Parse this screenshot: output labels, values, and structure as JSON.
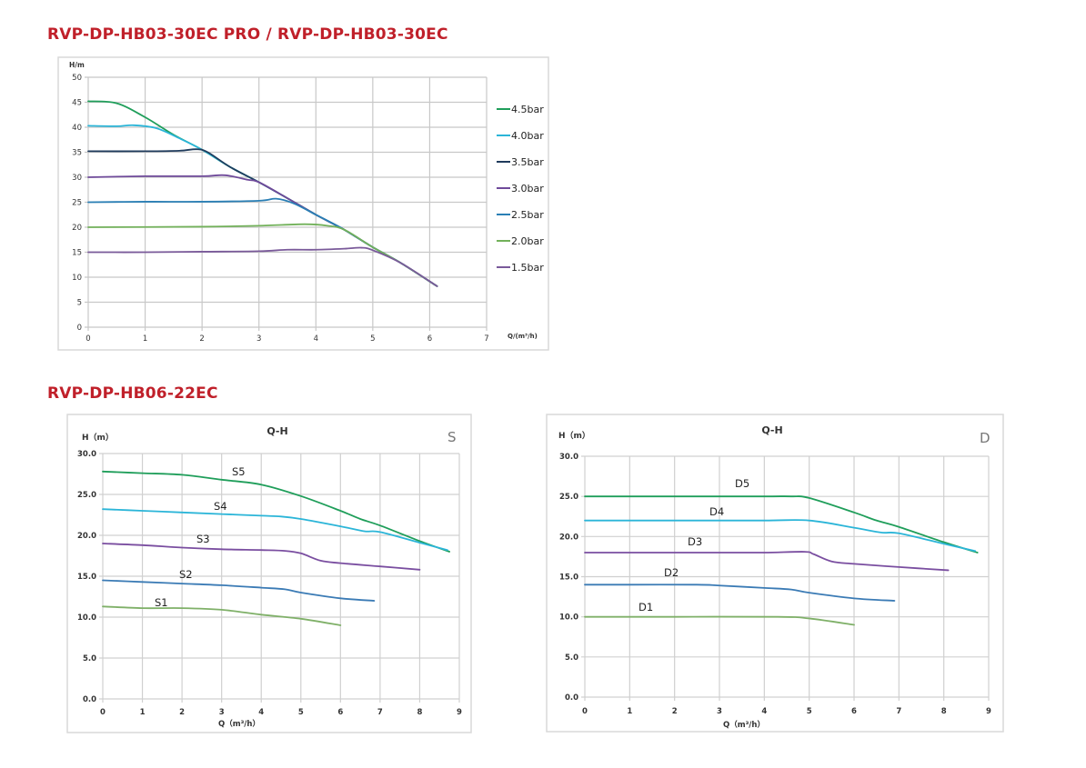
{
  "titles": {
    "section1": "RVP-DP-HB03-30EC PRO / RVP-DP-HB03-30EC",
    "section2": "RVP-DP-HB06-22EC"
  },
  "chart_data": [
    {
      "type": "line",
      "title": "",
      "xlabel": "Q/(m³/h)",
      "ylabel": "H/m",
      "xlim": [
        0,
        7
      ],
      "ylim": [
        0,
        50
      ],
      "xticks": [
        "0",
        "1",
        "2",
        "3",
        "4",
        "5",
        "6",
        "7"
      ],
      "yticks": [
        "0",
        "5",
        "10",
        "15",
        "20",
        "25",
        "30",
        "35",
        "40",
        "45",
        "50"
      ],
      "grid": true,
      "legend": "right",
      "series": [
        {
          "name": "4.5bar",
          "color": "#1f9e5a",
          "points": [
            [
              0,
              45.2
            ],
            [
              0.5,
              44.8
            ],
            [
              1,
              42
            ],
            [
              1.5,
              38.5
            ],
            [
              2,
              35.5
            ],
            [
              2.5,
              32
            ],
            [
              3,
              29
            ],
            [
              3.5,
              25.8
            ],
            [
              4,
              22.5
            ],
            [
              4.5,
              19.5
            ],
            [
              5,
              16
            ],
            [
              5.5,
              12.8
            ],
            [
              6.13,
              8.2
            ]
          ]
        },
        {
          "name": "4.0bar",
          "color": "#2bb5d8",
          "points": [
            [
              0,
              40.3
            ],
            [
              0.5,
              40.2
            ],
            [
              0.8,
              40.4
            ],
            [
              1.2,
              39.8
            ],
            [
              1.6,
              37.8
            ],
            [
              2,
              35.5
            ],
            [
              2.5,
              32
            ],
            [
              3,
              29
            ],
            [
              3.5,
              25.8
            ],
            [
              4,
              22.5
            ],
            [
              4.5,
              19.5
            ],
            [
              5,
              16
            ],
            [
              5.5,
              12.8
            ],
            [
              6.13,
              8.2
            ]
          ]
        },
        {
          "name": "3.5bar",
          "color": "#1f3b5c",
          "points": [
            [
              0,
              35.2
            ],
            [
              1,
              35.2
            ],
            [
              1.6,
              35.3
            ],
            [
              1.9,
              35.6
            ],
            [
              2.1,
              35
            ],
            [
              2.5,
              32
            ],
            [
              3,
              29
            ],
            [
              3.5,
              25.8
            ],
            [
              4,
              22.5
            ],
            [
              4.5,
              19.5
            ],
            [
              5,
              16
            ],
            [
              5.5,
              12.8
            ],
            [
              6.13,
              8.2
            ]
          ]
        },
        {
          "name": "3.0bar",
          "color": "#6f4a9a",
          "points": [
            [
              0,
              30
            ],
            [
              1,
              30.2
            ],
            [
              2,
              30.2
            ],
            [
              2.4,
              30.4
            ],
            [
              2.8,
              29.5
            ],
            [
              3,
              29
            ],
            [
              3.5,
              25.8
            ],
            [
              4,
              22.5
            ],
            [
              4.5,
              19.5
            ],
            [
              5,
              16
            ],
            [
              5.5,
              12.8
            ],
            [
              6.13,
              8.2
            ]
          ]
        },
        {
          "name": "2.5bar",
          "color": "#2a7fb5",
          "points": [
            [
              0,
              25
            ],
            [
              1,
              25.1
            ],
            [
              2,
              25.1
            ],
            [
              3,
              25.3
            ],
            [
              3.3,
              25.7
            ],
            [
              3.6,
              24.8
            ],
            [
              4,
              22.5
            ],
            [
              4.5,
              19.5
            ],
            [
              5,
              16
            ],
            [
              5.5,
              12.8
            ],
            [
              6.13,
              8.2
            ]
          ]
        },
        {
          "name": "2.0bar",
          "color": "#72b15a",
          "points": [
            [
              0,
              20
            ],
            [
              2,
              20.1
            ],
            [
              3,
              20.3
            ],
            [
              3.8,
              20.6
            ],
            [
              4.2,
              20.3
            ],
            [
              4.5,
              19.5
            ],
            [
              5,
              16
            ],
            [
              5.5,
              12.8
            ],
            [
              6.13,
              8.2
            ]
          ]
        },
        {
          "name": "1.5bar",
          "color": "#7a5a9a",
          "points": [
            [
              0,
              15
            ],
            [
              1,
              15
            ],
            [
              2,
              15.1
            ],
            [
              3,
              15.2
            ],
            [
              3.5,
              15.5
            ],
            [
              4,
              15.5
            ],
            [
              4.5,
              15.7
            ],
            [
              4.8,
              15.9
            ],
            [
              5,
              15.4
            ],
            [
              5.5,
              12.8
            ],
            [
              6.13,
              8.2
            ]
          ]
        }
      ]
    },
    {
      "type": "line",
      "title": "Q-H",
      "corner_label": "S",
      "xlabel": "Q（m³/h）",
      "ylabel": "H（m）",
      "xlim": [
        0,
        9
      ],
      "ylim": [
        0,
        30
      ],
      "xticks": [
        "0",
        "1",
        "2",
        "3",
        "4",
        "5",
        "6",
        "7",
        "8",
        "9"
      ],
      "yticks": [
        "0.0",
        "5.0",
        "10.0",
        "15.0",
        "20.0",
        "25.0",
        "30.0"
      ],
      "grid": true,
      "series": [
        {
          "name": "S5",
          "color": "#1f9e5a",
          "points": [
            [
              0,
              27.8
            ],
            [
              1,
              27.6
            ],
            [
              2,
              27.4
            ],
            [
              3,
              26.8
            ],
            [
              4,
              26.2
            ],
            [
              5,
              24.8
            ],
            [
              6,
              23
            ],
            [
              6.5,
              22
            ],
            [
              7,
              21.2
            ],
            [
              8,
              19.3
            ],
            [
              8.75,
              18
            ]
          ]
        },
        {
          "name": "S4",
          "color": "#2bb5d8",
          "points": [
            [
              0,
              23.2
            ],
            [
              1,
              23
            ],
            [
              2,
              22.8
            ],
            [
              3,
              22.6
            ],
            [
              4,
              22.4
            ],
            [
              4.5,
              22.3
            ],
            [
              5,
              22
            ],
            [
              6,
              21.1
            ],
            [
              6.6,
              20.5
            ],
            [
              7,
              20.4
            ],
            [
              8,
              19.1
            ],
            [
              8.7,
              18.2
            ]
          ]
        },
        {
          "name": "S3",
          "color": "#7a4ea0",
          "points": [
            [
              0,
              19
            ],
            [
              1,
              18.8
            ],
            [
              2,
              18.5
            ],
            [
              3,
              18.3
            ],
            [
              4,
              18.2
            ],
            [
              4.6,
              18.1
            ],
            [
              5,
              17.8
            ],
            [
              5.5,
              16.9
            ],
            [
              6,
              16.6
            ],
            [
              7,
              16.2
            ],
            [
              8,
              15.8
            ]
          ]
        },
        {
          "name": "S2",
          "color": "#3b7bb5",
          "points": [
            [
              0,
              14.5
            ],
            [
              1,
              14.3
            ],
            [
              2,
              14.1
            ],
            [
              3,
              13.9
            ],
            [
              4,
              13.6
            ],
            [
              4.6,
              13.4
            ],
            [
              5,
              13
            ],
            [
              6,
              12.3
            ],
            [
              6.85,
              12
            ]
          ]
        },
        {
          "name": "S1",
          "color": "#7fb068",
          "points": [
            [
              0,
              11.3
            ],
            [
              1,
              11.1
            ],
            [
              2,
              11.1
            ],
            [
              3,
              10.9
            ],
            [
              4,
              10.3
            ],
            [
              5,
              9.8
            ],
            [
              6,
              9
            ]
          ]
        }
      ]
    },
    {
      "type": "line",
      "title": "Q-H",
      "corner_label": "D",
      "xlabel": "Q（m³/h）",
      "ylabel": "H（m）",
      "xlim": [
        0,
        9
      ],
      "ylim": [
        0,
        30
      ],
      "xticks": [
        "0",
        "1",
        "2",
        "3",
        "4",
        "5",
        "6",
        "7",
        "8",
        "9"
      ],
      "yticks": [
        "0.0",
        "5.0",
        "10.0",
        "15.0",
        "20.0",
        "25.0",
        "30.0"
      ],
      "grid": true,
      "series": [
        {
          "name": "D5",
          "color": "#1f9e5a",
          "points": [
            [
              0,
              25
            ],
            [
              2,
              25
            ],
            [
              4,
              25
            ],
            [
              4.6,
              25
            ],
            [
              5,
              24.8
            ],
            [
              6,
              23
            ],
            [
              6.5,
              22
            ],
            [
              7,
              21.2
            ],
            [
              8,
              19.3
            ],
            [
              8.75,
              18
            ]
          ]
        },
        {
          "name": "D4",
          "color": "#2bb5d8",
          "points": [
            [
              0,
              22
            ],
            [
              2,
              22
            ],
            [
              4,
              22
            ],
            [
              5,
              22
            ],
            [
              6,
              21.1
            ],
            [
              6.6,
              20.5
            ],
            [
              7,
              20.4
            ],
            [
              8,
              19.1
            ],
            [
              8.7,
              18.2
            ]
          ]
        },
        {
          "name": "D3",
          "color": "#7a4ea0",
          "points": [
            [
              0,
              18
            ],
            [
              2,
              18
            ],
            [
              3,
              18
            ],
            [
              4,
              18
            ],
            [
              4.9,
              18.1
            ],
            [
              5.1,
              17.8
            ],
            [
              5.5,
              16.9
            ],
            [
              6,
              16.6
            ],
            [
              7,
              16.2
            ],
            [
              8.1,
              15.8
            ]
          ]
        },
        {
          "name": "D2",
          "color": "#3b7bb5",
          "points": [
            [
              0,
              14
            ],
            [
              1,
              14
            ],
            [
              2.5,
              14
            ],
            [
              3,
              13.9
            ],
            [
              4,
              13.6
            ],
            [
              4.6,
              13.4
            ],
            [
              5,
              13
            ],
            [
              6,
              12.3
            ],
            [
              6.9,
              12
            ]
          ]
        },
        {
          "name": "D1",
          "color": "#7fb068",
          "points": [
            [
              0,
              10
            ],
            [
              2,
              10
            ],
            [
              4.3,
              10
            ],
            [
              5,
              9.8
            ],
            [
              6,
              9
            ]
          ]
        }
      ]
    }
  ]
}
